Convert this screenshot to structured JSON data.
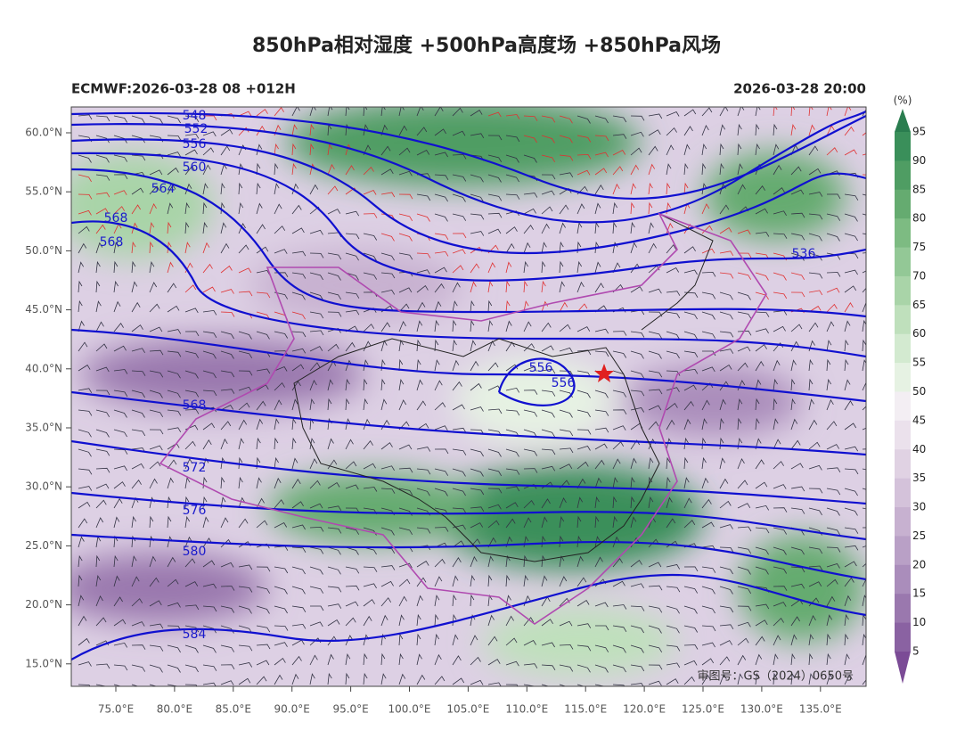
{
  "title": "850hPa相对湿度 +500hPa高度场 +850hPa风场",
  "model_run": "ECMWF:2026-03-28 08 +012H",
  "valid_time": "2026-03-28 20:00",
  "map": {
    "lat_labels": [
      "60.0°N",
      "55.0°N",
      "50.0°N",
      "45.0°N",
      "40.0°N",
      "35.0°N",
      "30.0°N",
      "25.0°N",
      "20.0°N",
      "15.0°N"
    ],
    "lon_labels": [
      "75.0°E",
      "80.0°E",
      "85.0°E",
      "90.0°E",
      "95.0°E",
      "100.0°E",
      "105.0°E",
      "110.0°E",
      "115.0°E",
      "120.0°E",
      "125.0°E",
      "130.0°E",
      "135.0°E"
    ],
    "contour_labels": [
      548,
      552,
      556,
      560,
      564,
      568,
      568,
      536,
      556,
      556,
      568,
      572,
      576,
      580,
      584
    ],
    "approval": "审图号：GS（2024）0650号"
  },
  "colorbar": {
    "unit": "(%)",
    "levels": [
      95,
      90,
      85,
      80,
      75,
      70,
      65,
      60,
      55,
      50,
      45,
      40,
      35,
      30,
      25,
      20,
      15,
      10,
      5
    ],
    "colors": [
      "#2a7d4f",
      "#3a8f5a",
      "#4f9d63",
      "#65ab70",
      "#7dbb82",
      "#93c896",
      "#a9d4a8",
      "#bfe0bc",
      "#d3ead0",
      "#e6f2e3",
      "#f3eef3",
      "#ebe1ec",
      "#e0d2e3",
      "#d4c2da",
      "#c7b1d0",
      "#b9a0c6",
      "#aa8dbb",
      "#9a78ae",
      "#8a62a2",
      "#7b4b96"
    ]
  }
}
